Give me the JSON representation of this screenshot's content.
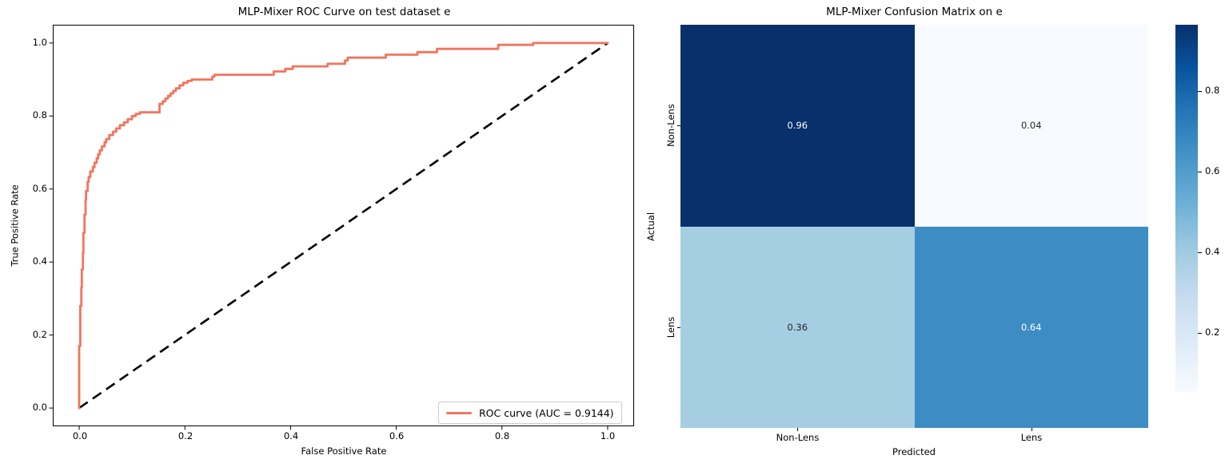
{
  "left_chart": {
    "title": "MLP-Mixer ROC Curve on test dataset e",
    "xlabel": "False Positive Rate",
    "ylabel": "True Positive Rate",
    "x_ticks": [
      "0.0",
      "0.2",
      "0.4",
      "0.6",
      "0.8",
      "1.0"
    ],
    "y_ticks": [
      "0.0",
      "0.2",
      "0.4",
      "0.6",
      "0.8",
      "1.0"
    ],
    "legend_label": "ROC curve (AUC = 0.9144)",
    "roc_color": "#f4745d",
    "diagonal_color": "#000000"
  },
  "right_chart": {
    "title": "MLP-Mixer Confusion Matrix on e",
    "xlabel": "Predicted",
    "ylabel": "Actual",
    "x_labels": [
      "Non-Lens",
      "Lens"
    ],
    "y_labels": [
      "Non-Lens",
      "Lens"
    ],
    "colorbar_ticks": [
      "0.8",
      "0.6",
      "0.4",
      "0.2"
    ]
  },
  "chart_data": [
    {
      "type": "line",
      "title": "MLP-Mixer ROC Curve on test dataset e",
      "xlabel": "False Positive Rate",
      "ylabel": "True Positive Rate",
      "xlim": [
        0.0,
        1.0
      ],
      "ylim": [
        0.0,
        1.0
      ],
      "x_ticks": [
        0.0,
        0.2,
        0.4,
        0.6,
        0.8,
        1.0
      ],
      "y_ticks": [
        0.0,
        0.2,
        0.4,
        0.6,
        0.8,
        1.0
      ],
      "grid": false,
      "legend_position": "lower right",
      "series": [
        {
          "name": "ROC curve (AUC = 0.9144)",
          "auc": 0.9144,
          "color": "#f4745d",
          "style": "solid",
          "points": [
            [
              0,
              0
            ],
            [
              0,
              0.17
            ],
            [
              0.002,
              0.17
            ],
            [
              0.002,
              0.28
            ],
            [
              0.004,
              0.28
            ],
            [
              0.004,
              0.33
            ],
            [
              0.005,
              0.33
            ],
            [
              0.005,
              0.38
            ],
            [
              0.007,
              0.38
            ],
            [
              0.007,
              0.425
            ],
            [
              0.008,
              0.425
            ],
            [
              0.008,
              0.48
            ],
            [
              0.01,
              0.48
            ],
            [
              0.01,
              0.53
            ],
            [
              0.012,
              0.53
            ],
            [
              0.012,
              0.57
            ],
            [
              0.013,
              0.57
            ],
            [
              0.013,
              0.595
            ],
            [
              0.016,
              0.595
            ],
            [
              0.016,
              0.62
            ],
            [
              0.018,
              0.62
            ],
            [
              0.018,
              0.633
            ],
            [
              0.021,
              0.633
            ],
            [
              0.021,
              0.648
            ],
            [
              0.026,
              0.648
            ],
            [
              0.026,
              0.66
            ],
            [
              0.029,
              0.66
            ],
            [
              0.029,
              0.672
            ],
            [
              0.033,
              0.672
            ],
            [
              0.033,
              0.684
            ],
            [
              0.036,
              0.684
            ],
            [
              0.036,
              0.695
            ],
            [
              0.039,
              0.695
            ],
            [
              0.039,
              0.706
            ],
            [
              0.043,
              0.706
            ],
            [
              0.043,
              0.717
            ],
            [
              0.048,
              0.717
            ],
            [
              0.048,
              0.728
            ],
            [
              0.051,
              0.728
            ],
            [
              0.051,
              0.737
            ],
            [
              0.057,
              0.737
            ],
            [
              0.057,
              0.748
            ],
            [
              0.064,
              0.748
            ],
            [
              0.064,
              0.757
            ],
            [
              0.07,
              0.757
            ],
            [
              0.07,
              0.766
            ],
            [
              0.077,
              0.766
            ],
            [
              0.077,
              0.775
            ],
            [
              0.085,
              0.775
            ],
            [
              0.085,
              0.783
            ],
            [
              0.092,
              0.783
            ],
            [
              0.092,
              0.791
            ],
            [
              0.1,
              0.791
            ],
            [
              0.1,
              0.8
            ],
            [
              0.107,
              0.8
            ],
            [
              0.107,
              0.806
            ],
            [
              0.115,
              0.806
            ],
            [
              0.115,
              0.81
            ],
            [
              0.152,
              0.81
            ],
            [
              0.152,
              0.833
            ],
            [
              0.158,
              0.833
            ],
            [
              0.158,
              0.84
            ],
            [
              0.163,
              0.84
            ],
            [
              0.163,
              0.848
            ],
            [
              0.168,
              0.848
            ],
            [
              0.168,
              0.855
            ],
            [
              0.173,
              0.855
            ],
            [
              0.173,
              0.862
            ],
            [
              0.178,
              0.862
            ],
            [
              0.178,
              0.869
            ],
            [
              0.183,
              0.869
            ],
            [
              0.183,
              0.876
            ],
            [
              0.19,
              0.876
            ],
            [
              0.19,
              0.884
            ],
            [
              0.197,
              0.884
            ],
            [
              0.197,
              0.891
            ],
            [
              0.205,
              0.891
            ],
            [
              0.205,
              0.896
            ],
            [
              0.213,
              0.896
            ],
            [
              0.213,
              0.9
            ],
            [
              0.252,
              0.9
            ],
            [
              0.252,
              0.908
            ],
            [
              0.256,
              0.908
            ],
            [
              0.256,
              0.913
            ],
            [
              0.368,
              0.913
            ],
            [
              0.368,
              0.922
            ],
            [
              0.39,
              0.922
            ],
            [
              0.39,
              0.929
            ],
            [
              0.404,
              0.929
            ],
            [
              0.404,
              0.936
            ],
            [
              0.47,
              0.936
            ],
            [
              0.47,
              0.943
            ],
            [
              0.503,
              0.943
            ],
            [
              0.503,
              0.952
            ],
            [
              0.508,
              0.952
            ],
            [
              0.508,
              0.96
            ],
            [
              0.58,
              0.96
            ],
            [
              0.58,
              0.968
            ],
            [
              0.64,
              0.968
            ],
            [
              0.64,
              0.975
            ],
            [
              0.677,
              0.975
            ],
            [
              0.677,
              0.984
            ],
            [
              0.793,
              0.984
            ],
            [
              0.793,
              0.995
            ],
            [
              0.859,
              0.995
            ],
            [
              0.859,
              1
            ],
            [
              1,
              1
            ]
          ]
        },
        {
          "name": "chance diagonal",
          "color": "#000000",
          "style": "dashed",
          "points": [
            [
              0,
              0
            ],
            [
              1,
              1
            ]
          ]
        }
      ]
    },
    {
      "type": "heatmap",
      "title": "MLP-Mixer Confusion Matrix on e",
      "xlabel": "Predicted",
      "ylabel": "Actual",
      "x_labels": [
        "Non-Lens",
        "Lens"
      ],
      "y_labels": [
        "Non-Lens",
        "Lens"
      ],
      "matrix": [
        [
          0.96,
          0.04
        ],
        [
          0.36,
          0.64
        ]
      ],
      "cell_colors": [
        [
          "#08306b",
          "#f7fbff"
        ],
        [
          "#a5cee3",
          "#3d8cc3"
        ]
      ],
      "cell_text_colors": [
        [
          "#ffffff",
          "#262626"
        ],
        [
          "#262626",
          "#ffffff"
        ]
      ],
      "colormap": "Blues",
      "colorbar_ticks": [
        0.8,
        0.6,
        0.4,
        0.2
      ],
      "colorbar_range": [
        0.04,
        0.96
      ]
    }
  ]
}
